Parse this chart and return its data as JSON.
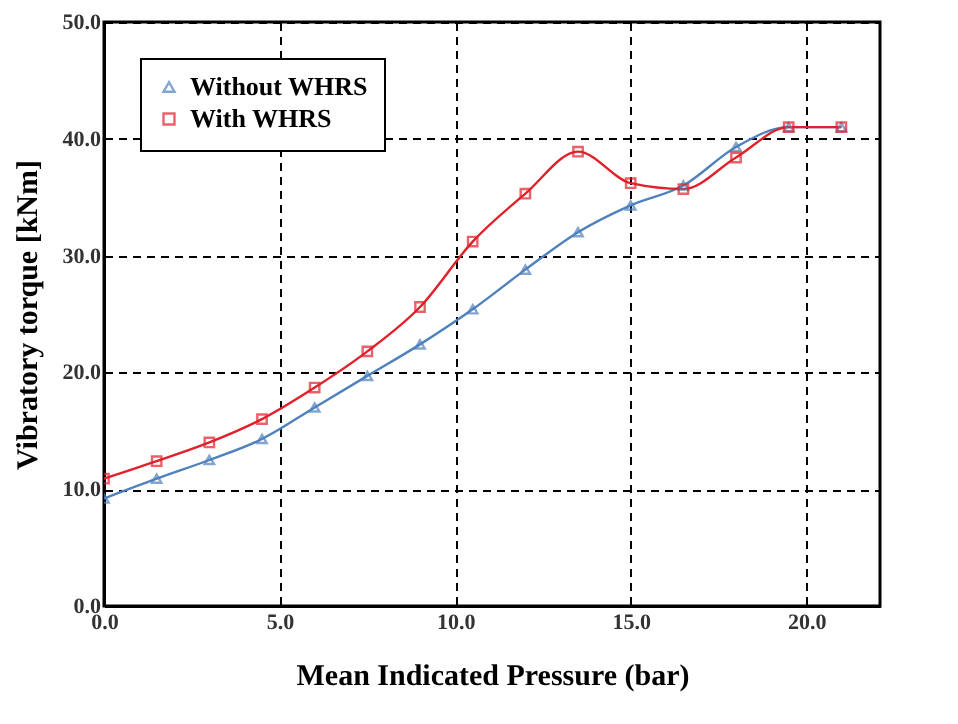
{
  "chart_data": {
    "type": "line",
    "xlabel": "Mean Indicated Pressure (bar)",
    "ylabel": "Vibratory torque [kNm]",
    "x": [
      0,
      1.5,
      3,
      4.5,
      6,
      7.5,
      9,
      10.5,
      12,
      13.5,
      15,
      16.5,
      18,
      19.5,
      21
    ],
    "series": [
      {
        "name": "Without WHRS",
        "color": "#4f81bd",
        "marker": "triangle",
        "values": [
          9.2,
          10.9,
          12.5,
          14.3,
          17.0,
          19.7,
          22.4,
          25.4,
          28.8,
          32.0,
          34.3,
          36.0,
          39.3,
          41.0,
          41.0
        ]
      },
      {
        "name": "With WHRS",
        "color": "#e0202a",
        "marker": "square",
        "values": [
          10.9,
          12.4,
          14.0,
          16.0,
          18.7,
          21.8,
          25.6,
          31.2,
          35.3,
          38.9,
          36.2,
          35.7,
          38.4,
          41.0,
          41.0
        ]
      }
    ],
    "xlim": [
      0,
      22.1
    ],
    "xticks": [
      {
        "value": 0,
        "label": "0.0"
      },
      {
        "value": 5,
        "label": "5.0"
      },
      {
        "value": 10,
        "label": "10.0"
      },
      {
        "value": 15,
        "label": "15.0"
      },
      {
        "value": 20,
        "label": "20.0"
      }
    ],
    "ylim": [
      0,
      50
    ],
    "yticks": [
      {
        "value": 0,
        "label": "0.0"
      },
      {
        "value": 10,
        "label": "10.0"
      },
      {
        "value": 20,
        "label": "20.0"
      },
      {
        "value": 30,
        "label": "30.0"
      },
      {
        "value": 40,
        "label": "40.0"
      },
      {
        "value": 50,
        "label": "50.0"
      }
    ],
    "grid": true,
    "legend": "top left",
    "line_style": "solid"
  }
}
